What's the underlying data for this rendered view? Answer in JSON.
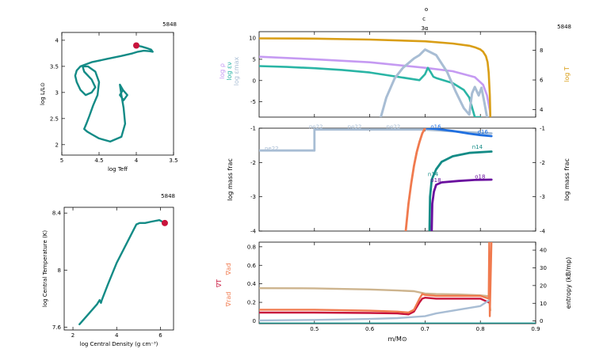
{
  "header": {
    "line1": "o",
    "line2": "c",
    "line3": "3α"
  },
  "colors": {
    "teal": "#138b86",
    "red_dot": "#c8143c",
    "rho": "#c59af2",
    "eps": "#2ab5a5",
    "epsmax": "#a8bdd4",
    "logT": "#d99e16",
    "ne22": "#a8bdd4",
    "o16": "#1f6fe0",
    "n14": "#138b86",
    "o18": "#6a0f9e",
    "c12": "#f07a4e",
    "grad_ad": "#f07a4e",
    "grad_rad": "#f07a4e",
    "grad_T": "#c8143c",
    "entropy": "#cdb48e"
  },
  "chart_data": [
    {
      "id": "hr",
      "type": "line",
      "model_number": "5848",
      "xlabel": "log Teff",
      "ylabel": "log L/L⊙",
      "xlim": [
        5,
        3.5
      ],
      "ylim": [
        1.8,
        4.15
      ],
      "xticks": [
        "5",
        "4.5",
        "4",
        "3.5"
      ],
      "yticks": [
        "2",
        "2.5",
        "3",
        "3.5",
        "4"
      ],
      "x": [
        4.0,
        3.93,
        3.86,
        3.8,
        3.78,
        3.82,
        3.9,
        3.98,
        4.05,
        4.2,
        4.4,
        4.6,
        4.75,
        4.8,
        4.82,
        4.8,
        4.75,
        4.68,
        4.6,
        4.55,
        4.6,
        4.7,
        4.72,
        4.65,
        4.55,
        4.5,
        4.52,
        4.58,
        4.63,
        4.67,
        4.7,
        4.66,
        4.6,
        4.5,
        4.35,
        4.2,
        4.15,
        4.17,
        4.2,
        4.22,
        4.18,
        4.12,
        4.17,
        4.22,
        4.18,
        4.15
      ],
      "y": [
        3.9,
        3.88,
        3.85,
        3.82,
        3.78,
        3.79,
        3.8,
        3.78,
        3.75,
        3.7,
        3.64,
        3.58,
        3.5,
        3.42,
        3.32,
        3.2,
        3.05,
        2.95,
        3.0,
        3.1,
        3.25,
        3.4,
        3.5,
        3.5,
        3.4,
        3.2,
        2.95,
        2.75,
        2.55,
        2.4,
        2.3,
        2.25,
        2.2,
        2.12,
        2.06,
        2.15,
        2.4,
        2.7,
        2.95,
        3.15,
        3.05,
        2.95,
        2.85,
        2.95,
        3.05,
        3.0
      ],
      "marker": {
        "x": 4.0,
        "y": 3.9
      }
    },
    {
      "id": "center",
      "type": "line",
      "model_number": "5848",
      "xlabel": "log Central Density (g cm⁻³)",
      "ylabel": "log Central Temperature (K)",
      "xlim": [
        1.6,
        6.6
      ],
      "ylim": [
        7.58,
        8.44
      ],
      "xticks": [
        "2",
        "4",
        "6"
      ],
      "yticks": [
        "7.6",
        "8",
        "8.4"
      ],
      "x": [
        2.3,
        2.7,
        3.1,
        3.22,
        3.28,
        3.32,
        3.6,
        4.0,
        4.5,
        4.9,
        5.05,
        5.3,
        5.6,
        5.95,
        6.2
      ],
      "y": [
        7.62,
        7.69,
        7.76,
        7.79,
        7.77,
        7.79,
        7.9,
        8.05,
        8.2,
        8.32,
        8.33,
        8.33,
        8.34,
        8.35,
        8.33
      ],
      "marker": {
        "x": 6.2,
        "y": 8.33
      }
    },
    {
      "id": "top",
      "type": "line",
      "model_number": "5848",
      "xlim": [
        0.4,
        0.9
      ],
      "ylim": [
        -8.6,
        11.5
      ],
      "yticks": [
        "-5",
        "0",
        "5",
        "10"
      ],
      "y2lim": [
        3.5,
        9.25
      ],
      "y2ticks": [
        "4",
        "6",
        "8"
      ],
      "y2label": "log T",
      "ylabels": [
        "log ρ",
        "log εν",
        "log εmax"
      ],
      "series": [
        {
          "name": "log ρ",
          "color_key": "rho",
          "x": [
            0.4,
            0.5,
            0.6,
            0.7,
            0.75,
            0.79,
            0.805,
            0.812,
            0.817,
            0.818
          ],
          "y": [
            5.6,
            5.0,
            4.3,
            3.0,
            2.2,
            0.8,
            -1.0,
            -3.5,
            -7.0,
            -8.6
          ]
        },
        {
          "name": "log εν",
          "color_key": "eps",
          "x": [
            0.4,
            0.45,
            0.5,
            0.55,
            0.6,
            0.65,
            0.69,
            0.7,
            0.705,
            0.71,
            0.715,
            0.72,
            0.75,
            0.77,
            0.78,
            0.79,
            0.795,
            0.8
          ],
          "y": [
            3.4,
            3.2,
            2.9,
            2.5,
            1.9,
            0.9,
            0.1,
            1.5,
            3.0,
            2.0,
            0.9,
            0.6,
            -0.6,
            -2.2,
            -4.0,
            -8.6,
            -8.6,
            -8.6
          ]
        },
        {
          "name": "log εmax",
          "color_key": "epsmax",
          "x": [
            0.62,
            0.63,
            0.645,
            0.66,
            0.68,
            0.69,
            0.7,
            0.72,
            0.74,
            0.755,
            0.77,
            0.78,
            0.785,
            0.79,
            0.797,
            0.802,
            0.807,
            0.812
          ],
          "y": [
            -8.6,
            -4.0,
            0.5,
            3.0,
            5.2,
            6.0,
            7.3,
            6.0,
            2.0,
            -2.5,
            -6.5,
            -8.0,
            -3.0,
            -1.5,
            -3.5,
            -1.7,
            -5.0,
            -8.6
          ]
        },
        {
          "name": "log T",
          "color_key": "logT",
          "axis": "right",
          "x": [
            0.4,
            0.5,
            0.6,
            0.7,
            0.75,
            0.78,
            0.79,
            0.8,
            0.805,
            0.81,
            0.813,
            0.815,
            0.817,
            0.818
          ],
          "y": [
            8.8,
            8.78,
            8.72,
            8.6,
            8.45,
            8.3,
            8.2,
            8.05,
            7.9,
            7.6,
            7.2,
            6.5,
            5.0,
            3.5
          ]
        }
      ]
    },
    {
      "id": "mid",
      "type": "line",
      "xlim": [
        0.4,
        0.9
      ],
      "ylim": [
        -4,
        -1
      ],
      "yticks": [
        "-4",
        "-3",
        "-2",
        "-1"
      ],
      "ylabel": "log mass frac",
      "y2ticks": [
        "-4",
        "-3",
        "-2",
        "-1"
      ],
      "y2label": "log mass frac",
      "labels": [
        {
          "text": "ne22",
          "x": 0.41,
          "y": -1.6,
          "color_key": "ne22"
        },
        {
          "text": "ne22",
          "x": 0.49,
          "y": -0.97,
          "color_key": "ne22"
        },
        {
          "text": "ne22",
          "x": 0.56,
          "y": -0.97,
          "color_key": "ne22"
        },
        {
          "text": "ne22",
          "x": 0.63,
          "y": -0.97,
          "color_key": "ne22"
        },
        {
          "text": "o16",
          "x": 0.71,
          "y": -0.97,
          "color_key": "o16"
        },
        {
          "text": "o16",
          "x": 0.795,
          "y": -1.12,
          "color_key": "o16"
        },
        {
          "text": "n14",
          "x": 0.785,
          "y": -1.55,
          "color_key": "n14"
        },
        {
          "text": "n14",
          "x": 0.705,
          "y": -2.35,
          "color_key": "n14"
        },
        {
          "text": "o18",
          "x": 0.71,
          "y": -2.52,
          "color_key": "o18"
        },
        {
          "text": "o18",
          "x": 0.79,
          "y": -2.42,
          "color_key": "o18"
        }
      ],
      "series": [
        {
          "name": "ne22",
          "color_key": "ne22",
          "x": [
            0.4,
            0.5,
            0.5,
            0.7,
            0.74,
            0.78,
            0.82
          ],
          "y": [
            -1.65,
            -1.65,
            -1.04,
            -1.04,
            -1.08,
            -1.12,
            -1.15
          ]
        },
        {
          "name": "o16",
          "color_key": "o16",
          "x": [
            0.7,
            0.72,
            0.75,
            0.78,
            0.8,
            0.82
          ],
          "y": [
            -1.0,
            -1.02,
            -1.08,
            -1.16,
            -1.2,
            -1.23
          ]
        },
        {
          "name": "n14",
          "color_key": "n14",
          "x": [
            0.708,
            0.709,
            0.712,
            0.72,
            0.73,
            0.75,
            0.78,
            0.82
          ],
          "y": [
            -4.0,
            -3.0,
            -2.5,
            -2.2,
            -1.98,
            -1.82,
            -1.72,
            -1.68
          ]
        },
        {
          "name": "o18",
          "color_key": "o18",
          "x": [
            0.712,
            0.713,
            0.716,
            0.72,
            0.73,
            0.76,
            0.79,
            0.82
          ],
          "y": [
            -4.0,
            -3.2,
            -2.85,
            -2.65,
            -2.58,
            -2.54,
            -2.51,
            -2.5
          ]
        },
        {
          "name": "c12",
          "color_key": "c12",
          "x": [
            0.665,
            0.67,
            0.675,
            0.68,
            0.685,
            0.69,
            0.695,
            0.7
          ],
          "y": [
            -4.0,
            -3.2,
            -2.6,
            -2.1,
            -1.7,
            -1.4,
            -1.15,
            -1.0
          ]
        }
      ]
    },
    {
      "id": "bottom",
      "type": "line",
      "xlim": [
        0.4,
        0.9
      ],
      "xticks": [
        "0.5",
        "0.6",
        "0.7",
        "0.8",
        "0.9"
      ],
      "xlabel": "m/M⊙",
      "ylim": [
        -0.03,
        0.85
      ],
      "yticks": [
        "0",
        "0.2",
        "0.4",
        "0.6",
        "0.8"
      ],
      "ylabels": [
        "∇T",
        "∇ad",
        "∇rad"
      ],
      "y2lim": [
        -1.5,
        44.5
      ],
      "y2ticks": [
        "0",
        "10",
        "20",
        "30",
        "40"
      ],
      "y2label": "entropy (kB/mp)",
      "series": [
        {
          "name": "entropy",
          "color_key": "entropy",
          "axis": "right",
          "x": [
            0.4,
            0.5,
            0.6,
            0.65,
            0.68,
            0.7,
            0.72,
            0.76,
            0.8,
            0.815,
            0.818
          ],
          "y": [
            18.5,
            18.4,
            17.8,
            17.2,
            16.8,
            15.5,
            15.2,
            15.0,
            14.5,
            14.0,
            6.0
          ]
        },
        {
          "name": "∇T",
          "color_key": "grad_T",
          "x": [
            0.4,
            0.5,
            0.6,
            0.65,
            0.67,
            0.68,
            0.69,
            0.695,
            0.7,
            0.72,
            0.76,
            0.8,
            0.815
          ],
          "y": [
            0.09,
            0.09,
            0.085,
            0.08,
            0.07,
            0.1,
            0.2,
            0.24,
            0.25,
            0.24,
            0.24,
            0.24,
            0.2
          ]
        },
        {
          "name": "∇ad",
          "color_key": "grad_ad",
          "x": [
            0.4,
            0.5,
            0.6,
            0.65,
            0.67,
            0.68,
            0.69,
            0.695,
            0.7,
            0.72,
            0.76,
            0.8,
            0.815,
            0.816,
            0.817,
            0.82
          ],
          "y": [
            0.12,
            0.12,
            0.11,
            0.1,
            0.09,
            0.12,
            0.24,
            0.29,
            0.28,
            0.27,
            0.27,
            0.27,
            0.24,
            0.85,
            0.05,
            0.85
          ]
        },
        {
          "name": "∇rad",
          "color_key": "epsmax",
          "x": [
            0.4,
            0.5,
            0.6,
            0.65,
            0.7,
            0.72,
            0.76,
            0.8,
            0.815
          ],
          "y": [
            0.005,
            0.01,
            0.02,
            0.03,
            0.05,
            0.08,
            0.12,
            0.16,
            0.22
          ]
        },
        {
          "name": "zero",
          "color_key": "teal",
          "x": [
            0.4,
            0.9
          ],
          "y": [
            -0.025,
            -0.025
          ]
        }
      ]
    }
  ]
}
